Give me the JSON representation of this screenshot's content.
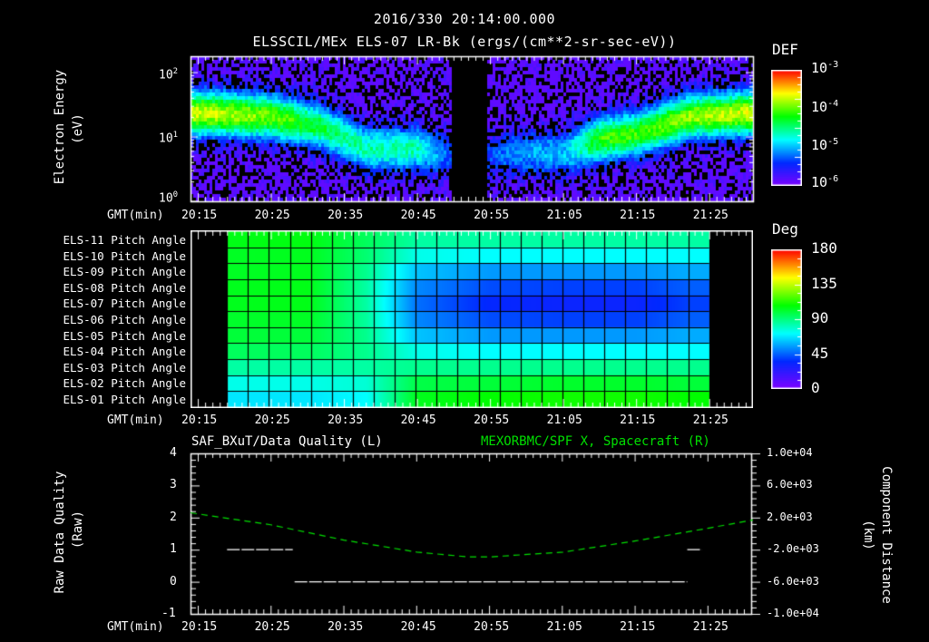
{
  "header": {
    "timestamp": "2016/330 20:14:00.000",
    "title": "ELSSCIL/MEx ELS-07 LR-Bk  (ergs/(cm**2-sr-sec-eV))"
  },
  "time_axis": {
    "label": "GMT(min)",
    "ticks": [
      "20:15",
      "20:25",
      "20:35",
      "20:45",
      "20:55",
      "21:05",
      "21:15",
      "21:25"
    ]
  },
  "panel1": {
    "ylabel": "Electron Energy",
    "yunit": "(eV)",
    "yticks": [
      "10^0",
      "10^1",
      "10^2"
    ],
    "colorbar": {
      "title": "DEF",
      "ticks": [
        "10^-3",
        "10^-4",
        "10^-5",
        "10^-6"
      ]
    }
  },
  "panel2": {
    "rows": [
      "ELS-11 Pitch Angle",
      "ELS-10 Pitch Angle",
      "ELS-09 Pitch Angle",
      "ELS-08 Pitch Angle",
      "ELS-07 Pitch Angle",
      "ELS-06 Pitch Angle",
      "ELS-05 Pitch Angle",
      "ELS-04 Pitch Angle",
      "ELS-03 Pitch Angle",
      "ELS-02 Pitch Angle",
      "ELS-01 Pitch Angle"
    ],
    "colorbar": {
      "title": "Deg",
      "ticks": [
        "180",
        "135",
        "90",
        "45",
        "0"
      ]
    }
  },
  "panel3": {
    "left_title": "SAF_BXuT/Data Quality (L)",
    "right_title": "MEXORBMC/SPF X, Spacecraft (R)",
    "left_ylabel": "Raw Data Quality",
    "left_yunit": "(Raw)",
    "left_yticks": [
      "4",
      "3",
      "2",
      "1",
      "0",
      "-1"
    ],
    "right_ylabel": "Component Distance",
    "right_yunit": "(km)",
    "right_yticks": [
      "1.0e+04",
      "6.0e+03",
      "2.0e+03",
      "-2.0e+03",
      "-6.0e+03",
      "-1.0e+04"
    ]
  },
  "colors": {
    "background": "#000000",
    "axis": "#ffffff",
    "spacecraft_line": "#00e000"
  },
  "chart_data": [
    {
      "type": "heatmap",
      "title": "ELSSCIL/MEx ELS-07 LR-Bk (ergs/(cm**2-sr-sec-eV))",
      "xlabel": "GMT(min)",
      "ylabel": "Electron Energy (eV)",
      "yscale": "log",
      "ylim": [
        1,
        180
      ],
      "xlim": [
        "20:14",
        "21:31"
      ],
      "colorbar": {
        "label": "DEF",
        "scale": "log",
        "range": [
          1e-06,
          0.001
        ]
      },
      "description": "Spectrogram; peak flux band ~20-40 eV from 20:14-20:32 and 21:08-21:31; weaker band ~5-10 eV 20:32-20:47; data gap ~20:48-20:56; weak scattered data 20:56-21:07",
      "band_profile": [
        {
          "time": "20:15",
          "center_eV": 25,
          "level": 0.85
        },
        {
          "time": "20:25",
          "center_eV": 22,
          "level": 0.75
        },
        {
          "time": "20:32",
          "center_eV": 15,
          "level": 0.6
        },
        {
          "time": "20:38",
          "center_eV": 7,
          "level": 0.5
        },
        {
          "time": "20:45",
          "center_eV": 7,
          "level": 0.5
        },
        {
          "time": "20:51",
          "center_eV": 5,
          "level": 0.1
        },
        {
          "time": "20:58",
          "center_eV": 6,
          "level": 0.3
        },
        {
          "time": "21:05",
          "center_eV": 6,
          "level": 0.35
        },
        {
          "time": "21:10",
          "center_eV": 10,
          "level": 0.7
        },
        {
          "time": "21:15",
          "center_eV": 12,
          "level": 0.7
        },
        {
          "time": "21:22",
          "center_eV": 22,
          "level": 0.78
        },
        {
          "time": "21:30",
          "center_eV": 25,
          "level": 0.85
        }
      ]
    },
    {
      "type": "heatmap",
      "title": "Pitch Angle",
      "xlabel": "GMT(min)",
      "categories": [
        "ELS-11",
        "ELS-10",
        "ELS-09",
        "ELS-08",
        "ELS-07",
        "ELS-06",
        "ELS-05",
        "ELS-04",
        "ELS-03",
        "ELS-02",
        "ELS-01"
      ],
      "colorbar": {
        "label": "Deg",
        "range": [
          0,
          180
        ]
      },
      "data_span": [
        "20:19",
        "21:25"
      ],
      "columns": 23,
      "description": "Approximate pitch angle (deg) at column samples",
      "samples": [
        {
          "time": "20:20",
          "values": [
            105,
            103,
            103,
            104,
            104,
            102,
            100,
            95,
            85,
            75,
            68
          ]
        },
        {
          "time": "20:30",
          "values": [
            106,
            104,
            104,
            105,
            105,
            103,
            100,
            95,
            85,
            75,
            68
          ]
        },
        {
          "time": "20:38",
          "values": [
            95,
            92,
            88,
            85,
            85,
            86,
            88,
            88,
            85,
            78,
            72
          ]
        },
        {
          "time": "20:45",
          "values": [
            85,
            75,
            62,
            52,
            48,
            52,
            62,
            75,
            88,
            98,
            104
          ]
        },
        {
          "time": "20:55",
          "values": [
            85,
            72,
            55,
            42,
            35,
            42,
            55,
            72,
            88,
            100,
            108
          ]
        },
        {
          "time": "21:05",
          "values": [
            85,
            72,
            55,
            40,
            33,
            40,
            55,
            72,
            88,
            102,
            110
          ]
        },
        {
          "time": "21:15",
          "values": [
            85,
            72,
            55,
            40,
            33,
            40,
            55,
            72,
            88,
            102,
            110
          ]
        },
        {
          "time": "21:22",
          "values": [
            85,
            72,
            58,
            45,
            40,
            45,
            58,
            72,
            88,
            100,
            108
          ]
        }
      ]
    },
    {
      "type": "line",
      "title": "SAF_BXuT/Data Quality (L) / MEXORBMC/SPF X, Spacecraft (R)",
      "xlabel": "GMT(min)",
      "ylabel_left": "Raw Data Quality (Raw)",
      "ylabel_right": "Component Distance (km)",
      "ylim_left": [
        -1,
        4
      ],
      "ylim_right": [
        -10000,
        10000
      ],
      "series": [
        {
          "name": "Data Quality (L)",
          "axis": "left",
          "points": [
            [
              "20:19",
              1
            ],
            [
              "20:28",
              1
            ],
            [
              "20:28",
              0
            ],
            [
              "21:22",
              0
            ],
            [
              "21:22",
              1
            ],
            [
              "21:24",
              1
            ]
          ]
        },
        {
          "name": "SPF X Spacecraft (R)",
          "axis": "right",
          "style": "dashed",
          "color": "#00e000",
          "points": [
            [
              "20:14",
              2600
            ],
            [
              "20:25",
              1100
            ],
            [
              "20:35",
              -800
            ],
            [
              "20:45",
              -2300
            ],
            [
              "20:52",
              -2900
            ],
            [
              "20:55",
              -2900
            ],
            [
              "21:05",
              -2300
            ],
            [
              "21:15",
              -900
            ],
            [
              "21:25",
              700
            ],
            [
              "21:31",
              1700
            ]
          ]
        }
      ]
    }
  ]
}
